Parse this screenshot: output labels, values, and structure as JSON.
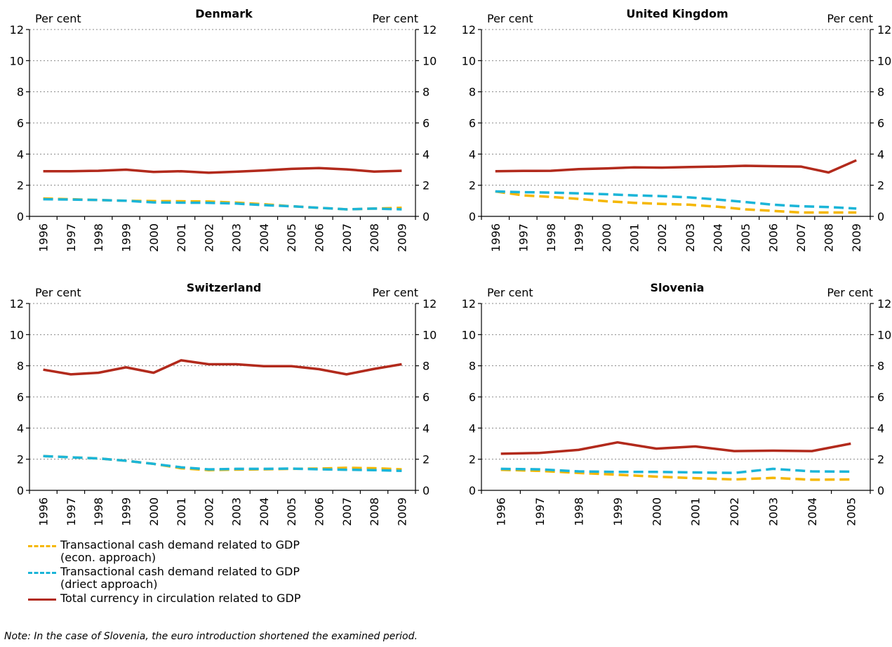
{
  "colors": {
    "econ": "#F5B700",
    "direct": "#1BB5D8",
    "total": "#B22A1C",
    "grid": "#888888"
  },
  "chart_data": [
    {
      "type": "line",
      "title": "Denmark",
      "ylabel_left": "Per cent",
      "ylabel_right": "Per cent",
      "x": [
        "1996",
        "1997",
        "1998",
        "1999",
        "2000",
        "2001",
        "2002",
        "2003",
        "2004",
        "2005",
        "2006",
        "2007",
        "2008",
        "2009"
      ],
      "ylim": [
        0,
        12
      ],
      "yticks": [
        "0",
        "2",
        "4",
        "6",
        "8",
        "10",
        "12"
      ],
      "series": [
        {
          "key": "econ",
          "values": [
            1.15,
            1.1,
            1.05,
            1.0,
            0.98,
            0.97,
            0.95,
            0.88,
            0.78,
            0.65,
            0.55,
            0.45,
            0.5,
            0.55
          ]
        },
        {
          "key": "direct",
          "values": [
            1.1,
            1.08,
            1.05,
            1.0,
            0.9,
            0.88,
            0.87,
            0.82,
            0.72,
            0.65,
            0.55,
            0.45,
            0.5,
            0.45
          ]
        },
        {
          "key": "total",
          "values": [
            2.9,
            2.9,
            2.93,
            3.0,
            2.85,
            2.9,
            2.8,
            2.87,
            2.95,
            3.05,
            3.1,
            3.02,
            2.88,
            2.93
          ]
        }
      ]
    },
    {
      "type": "line",
      "title": "United Kingdom",
      "ylabel_left": "Per cent",
      "ylabel_right": "Per cent",
      "x": [
        "1996",
        "1997",
        "1998",
        "1999",
        "2000",
        "2001",
        "2002",
        "2003",
        "2004",
        "2005",
        "2006",
        "2007",
        "2008",
        "2009"
      ],
      "ylim": [
        0,
        12
      ],
      "yticks": [
        "0",
        "2",
        "4",
        "6",
        "8",
        "10",
        "12"
      ],
      "series": [
        {
          "key": "econ",
          "values": [
            1.6,
            1.35,
            1.25,
            1.12,
            0.97,
            0.87,
            0.8,
            0.75,
            0.62,
            0.45,
            0.35,
            0.25,
            0.25,
            0.25
          ]
        },
        {
          "key": "direct",
          "values": [
            1.6,
            1.55,
            1.53,
            1.48,
            1.42,
            1.35,
            1.3,
            1.22,
            1.08,
            0.92,
            0.75,
            0.65,
            0.6,
            0.5
          ]
        },
        {
          "key": "total",
          "values": [
            2.9,
            2.92,
            2.93,
            3.03,
            3.08,
            3.15,
            3.13,
            3.17,
            3.2,
            3.25,
            3.22,
            3.2,
            2.82,
            3.6
          ]
        }
      ]
    },
    {
      "type": "line",
      "title": "Switzerland",
      "ylabel_left": "Per cent",
      "ylabel_right": "Per cent",
      "x": [
        "1996",
        "1997",
        "1998",
        "1999",
        "2000",
        "2001",
        "2002",
        "2003",
        "2004",
        "2005",
        "2006",
        "2007",
        "2008",
        "2009"
      ],
      "ylim": [
        0,
        12
      ],
      "yticks": [
        "0",
        "2",
        "4",
        "6",
        "8",
        "10",
        "12"
      ],
      "series": [
        {
          "key": "econ",
          "values": [
            2.2,
            2.12,
            2.05,
            1.9,
            1.7,
            1.42,
            1.3,
            1.33,
            1.35,
            1.38,
            1.4,
            1.45,
            1.42,
            1.35
          ]
        },
        {
          "key": "direct",
          "values": [
            2.2,
            2.12,
            2.05,
            1.9,
            1.7,
            1.48,
            1.35,
            1.38,
            1.38,
            1.4,
            1.35,
            1.32,
            1.3,
            1.25
          ]
        },
        {
          "key": "total",
          "values": [
            7.75,
            7.45,
            7.55,
            7.9,
            7.55,
            8.35,
            8.1,
            8.1,
            7.97,
            7.97,
            7.78,
            7.45,
            7.8,
            8.1
          ]
        }
      ]
    },
    {
      "type": "line",
      "title": "Slovenia",
      "ylabel_left": "Per cent",
      "ylabel_right": "Per cent",
      "x": [
        "1996",
        "1997",
        "1998",
        "1999",
        "2000",
        "2001",
        "2002",
        "2003",
        "2004",
        "2005"
      ],
      "ylim": [
        0,
        12
      ],
      "yticks": [
        "0",
        "2",
        "4",
        "6",
        "8",
        "10",
        "12"
      ],
      "series": [
        {
          "key": "econ",
          "values": [
            1.32,
            1.25,
            1.12,
            1.0,
            0.88,
            0.78,
            0.7,
            0.8,
            0.68,
            0.7
          ]
        },
        {
          "key": "direct",
          "values": [
            1.38,
            1.35,
            1.22,
            1.18,
            1.18,
            1.15,
            1.12,
            1.38,
            1.22,
            1.2
          ]
        },
        {
          "key": "total",
          "values": [
            2.35,
            2.4,
            2.6,
            3.08,
            2.68,
            2.82,
            2.52,
            2.55,
            2.52,
            3.0
          ]
        }
      ]
    }
  ],
  "legend": [
    {
      "key": "econ",
      "line1": "Transactional cash demand related to GDP",
      "line2": "(econ. approach)"
    },
    {
      "key": "direct",
      "line1": "Transactional cash demand related to GDP",
      "line2": "(driect approach)"
    },
    {
      "key": "total",
      "line1": "Total currency in circulation related to GDP",
      "line2": ""
    }
  ],
  "note": "Note: In the case of Slovenia, the euro introduction shortened the examined period."
}
